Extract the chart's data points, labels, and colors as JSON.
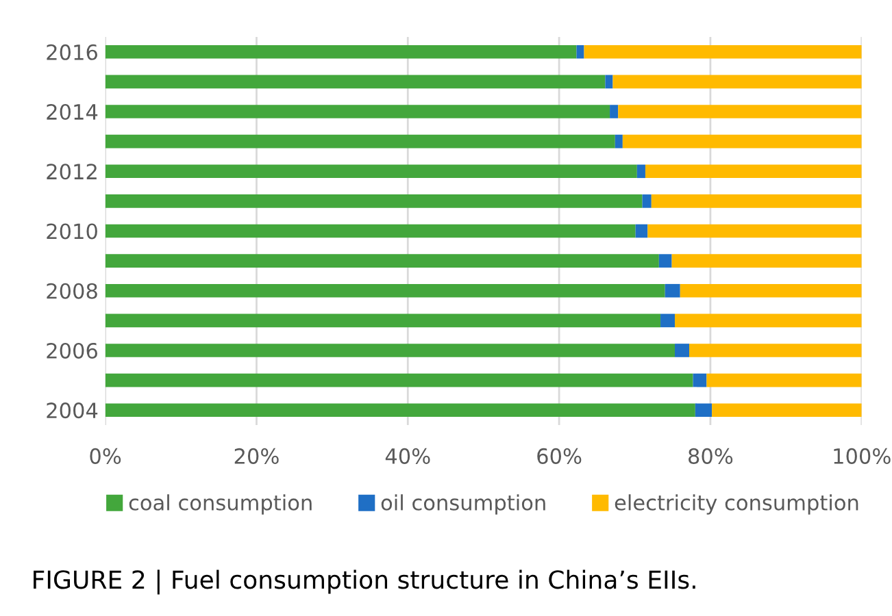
{
  "chart_data": {
    "type": "bar",
    "orientation": "horizontal",
    "stacked": true,
    "categories": [
      "2016",
      null,
      "2014",
      null,
      "2012",
      null,
      "2010",
      null,
      "2008",
      null,
      "2006",
      null,
      "2004"
    ],
    "series": [
      {
        "name": "coal consumption",
        "color": "#43a73c",
        "values": [
          62.3,
          66.1,
          66.7,
          67.4,
          70.3,
          71.0,
          70.1,
          73.2,
          74.0,
          73.4,
          75.3,
          77.7,
          78.0
        ]
      },
      {
        "name": "oil consumption",
        "color": "#1f6fc5",
        "values": [
          1.0,
          1.0,
          1.1,
          1.0,
          1.1,
          1.2,
          1.6,
          1.7,
          2.0,
          1.9,
          1.9,
          1.8,
          2.2
        ]
      },
      {
        "name": "electricity consumption",
        "color": "#ffba00",
        "values": [
          36.7,
          32.9,
          32.2,
          31.6,
          28.6,
          27.8,
          28.3,
          25.1,
          24.0,
          24.7,
          22.8,
          20.5,
          19.8
        ]
      }
    ],
    "xlim": [
      0,
      100
    ],
    "xticks": [
      {
        "value": 0,
        "label": "0%"
      },
      {
        "value": 20,
        "label": "20%"
      },
      {
        "value": 40,
        "label": "40%"
      },
      {
        "value": 60,
        "label": "60%"
      },
      {
        "value": 80,
        "label": "80%"
      },
      {
        "value": 100,
        "label": "100%"
      }
    ],
    "grid": "x",
    "legend": "bottom",
    "annotations": [
      "FIGURE 2 | Fuel consumption structure in China’s EIIs."
    ]
  }
}
